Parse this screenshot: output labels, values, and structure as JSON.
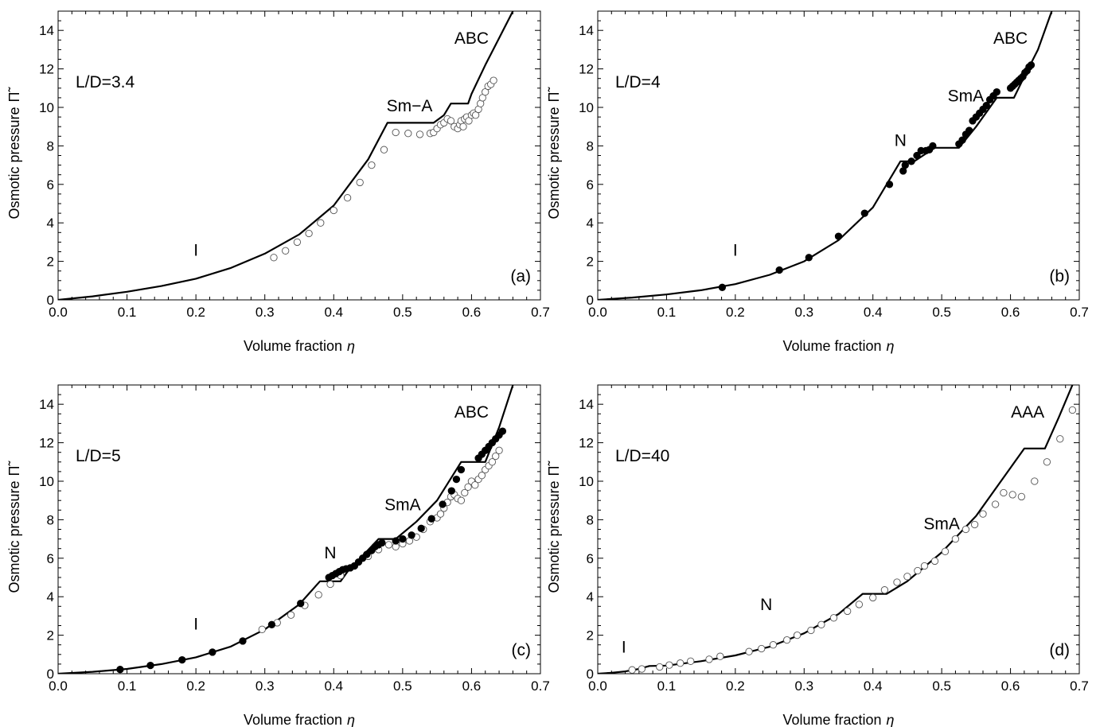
{
  "chart_data": [
    {
      "type": "scatter",
      "panel_label": "(a)",
      "annotation": "L/D=3.4",
      "xlabel": "Volume fraction",
      "xlabel_symbol": "η",
      "ylabel": "Osmotic pressure",
      "ylabel_symbol": "Π̃",
      "xlim": [
        0,
        0.7
      ],
      "ylim": [
        0,
        15
      ],
      "xticks": [
        "0.0",
        "0.1",
        "0.2",
        "0.3",
        "0.4",
        "0.5",
        "0.6",
        "0.7"
      ],
      "yticks": [
        "0",
        "2",
        "4",
        "6",
        "8",
        "10",
        "12",
        "14"
      ],
      "phase_labels": [
        {
          "text": "I",
          "x": 0.2,
          "y": 2.3
        },
        {
          "text": "Sm−A",
          "x": 0.51,
          "y": 9.8
        },
        {
          "text": "ABC",
          "x": 0.6,
          "y": 13.3
        }
      ],
      "series": [
        {
          "style": "theory-line",
          "x": [
            0,
            0.05,
            0.1,
            0.15,
            0.2,
            0.25,
            0.3,
            0.35,
            0.4,
            0.45,
            0.478,
            0.545,
            0.56,
            0.57,
            0.595,
            0.6,
            0.62,
            0.64,
            0.66
          ],
          "y": [
            0,
            0.18,
            0.42,
            0.72,
            1.1,
            1.65,
            2.4,
            3.4,
            4.9,
            7.3,
            9.2,
            9.2,
            9.6,
            10.2,
            10.2,
            10.7,
            12.2,
            13.6,
            15.0
          ]
        },
        {
          "style": "open-circle",
          "x": [
            0.313,
            0.33,
            0.347,
            0.364,
            0.381,
            0.4,
            0.42,
            0.438,
            0.455,
            0.473,
            0.49,
            0.508,
            0.525,
            0.54,
            0.545,
            0.55,
            0.555,
            0.56,
            0.565,
            0.57,
            0.575,
            0.58,
            0.583,
            0.585,
            0.588,
            0.59,
            0.593,
            0.596,
            0.6,
            0.603,
            0.606,
            0.61,
            0.613,
            0.616,
            0.62,
            0.624,
            0.628,
            0.632
          ],
          "y": [
            2.2,
            2.55,
            3.0,
            3.45,
            4.0,
            4.65,
            5.3,
            6.1,
            7.0,
            7.8,
            8.7,
            8.65,
            8.6,
            8.65,
            8.7,
            8.9,
            9.1,
            9.2,
            9.4,
            9.3,
            9.0,
            8.9,
            9.1,
            9.3,
            9.0,
            9.4,
            9.5,
            9.3,
            9.6,
            9.7,
            9.6,
            9.9,
            10.2,
            10.5,
            10.8,
            11.1,
            11.2,
            11.4
          ]
        }
      ]
    },
    {
      "type": "scatter",
      "panel_label": "(b)",
      "annotation": "L/D=4",
      "xlabel": "Volume fraction",
      "xlabel_symbol": "η",
      "ylabel": "Osmotic pressure",
      "ylabel_symbol": "Π̃",
      "xlim": [
        0,
        0.7
      ],
      "ylim": [
        0,
        15
      ],
      "xticks": [
        "0.0",
        "0.1",
        "0.2",
        "0.3",
        "0.4",
        "0.5",
        "0.6",
        "0.7"
      ],
      "yticks": [
        "0",
        "2",
        "4",
        "6",
        "8",
        "10",
        "12",
        "14"
      ],
      "phase_labels": [
        {
          "text": "I",
          "x": 0.2,
          "y": 2.3
        },
        {
          "text": "N",
          "x": 0.44,
          "y": 8.0
        },
        {
          "text": "SmA",
          "x": 0.535,
          "y": 10.3
        },
        {
          "text": "ABC",
          "x": 0.6,
          "y": 13.3
        }
      ],
      "series": [
        {
          "style": "theory-line",
          "x": [
            0,
            0.05,
            0.1,
            0.15,
            0.2,
            0.25,
            0.3,
            0.35,
            0.4,
            0.44,
            0.46,
            0.475,
            0.49,
            0.525,
            0.55,
            0.58,
            0.605,
            0.62,
            0.64,
            0.66
          ],
          "y": [
            0,
            0.12,
            0.28,
            0.5,
            0.82,
            1.3,
            2.0,
            3.1,
            4.8,
            7.2,
            7.2,
            7.55,
            7.9,
            7.9,
            9.0,
            10.5,
            10.5,
            11.6,
            13.0,
            15.0
          ]
        },
        {
          "style": "filled-circle",
          "x": [
            0.181,
            0.264,
            0.307,
            0.35,
            0.388,
            0.424,
            0.444,
            0.447,
            0.456,
            0.464,
            0.47,
            0.477,
            0.482,
            0.487,
            0.525,
            0.53,
            0.535,
            0.54,
            0.545,
            0.55,
            0.555,
            0.56,
            0.565,
            0.57,
            0.575,
            0.58,
            0.6,
            0.603,
            0.606,
            0.609,
            0.612,
            0.615,
            0.618,
            0.621,
            0.624,
            0.627,
            0.63
          ],
          "y": [
            0.65,
            1.55,
            2.2,
            3.3,
            4.5,
            6.0,
            6.7,
            7.0,
            7.2,
            7.5,
            7.75,
            7.75,
            7.8,
            8.0,
            8.1,
            8.3,
            8.6,
            8.8,
            9.3,
            9.5,
            9.7,
            9.9,
            10.1,
            10.4,
            10.6,
            10.8,
            11.0,
            11.1,
            11.2,
            11.3,
            11.4,
            11.5,
            11.6,
            11.8,
            11.9,
            12.1,
            12.2
          ]
        }
      ]
    },
    {
      "type": "scatter",
      "panel_label": "(c)",
      "annotation": "L/D=5",
      "xlabel": "Volume fraction",
      "xlabel_symbol": "η",
      "ylabel": "Osmotic pressure",
      "ylabel_symbol": "Π̃",
      "xlim": [
        0,
        0.7
      ],
      "ylim": [
        0,
        15
      ],
      "xticks": [
        "0.0",
        "0.1",
        "0.2",
        "0.3",
        "0.4",
        "0.5",
        "0.6",
        "0.7"
      ],
      "yticks": [
        "0",
        "2",
        "4",
        "6",
        "8",
        "10",
        "12",
        "14"
      ],
      "phase_labels": [
        {
          "text": "I",
          "x": 0.2,
          "y": 2.3
        },
        {
          "text": "N",
          "x": 0.395,
          "y": 6.0
        },
        {
          "text": "SmA",
          "x": 0.5,
          "y": 8.5
        },
        {
          "text": "ABC",
          "x": 0.6,
          "y": 13.3
        }
      ],
      "series": [
        {
          "style": "theory-line",
          "x": [
            0,
            0.05,
            0.1,
            0.15,
            0.2,
            0.25,
            0.3,
            0.35,
            0.38,
            0.41,
            0.42,
            0.465,
            0.49,
            0.52,
            0.55,
            0.585,
            0.62,
            0.64,
            0.66
          ],
          "y": [
            0,
            0.1,
            0.25,
            0.5,
            0.85,
            1.4,
            2.3,
            3.6,
            4.8,
            4.8,
            5.3,
            7.0,
            7.0,
            7.9,
            9.0,
            11.0,
            11.0,
            12.8,
            15.0
          ]
        },
        {
          "style": "open-circle",
          "x": [
            0.296,
            0.318,
            0.338,
            0.358,
            0.378,
            0.395,
            0.41,
            0.43,
            0.45,
            0.465,
            0.48,
            0.49,
            0.5,
            0.51,
            0.52,
            0.53,
            0.54,
            0.55,
            0.555,
            0.56,
            0.565,
            0.57,
            0.575,
            0.58,
            0.585,
            0.59,
            0.595,
            0.6,
            0.605,
            0.61,
            0.615,
            0.62,
            0.625,
            0.63,
            0.635,
            0.64
          ],
          "y": [
            2.3,
            2.65,
            3.05,
            3.55,
            4.1,
            4.65,
            5.1,
            5.6,
            6.1,
            6.45,
            6.7,
            6.6,
            6.75,
            6.9,
            7.1,
            7.5,
            7.9,
            8.1,
            8.3,
            8.6,
            8.9,
            9.2,
            9.3,
            9.1,
            9.0,
            9.4,
            9.7,
            10.0,
            9.8,
            10.1,
            10.3,
            10.6,
            10.8,
            11.0,
            11.3,
            11.6
          ]
        },
        {
          "style": "filled-circle",
          "x": [
            0.09,
            0.134,
            0.18,
            0.224,
            0.268,
            0.31,
            0.352,
            0.393,
            0.398,
            0.403,
            0.408,
            0.413,
            0.418,
            0.424,
            0.43,
            0.436,
            0.442,
            0.448,
            0.455,
            0.46,
            0.465,
            0.47,
            0.49,
            0.5,
            0.513,
            0.527,
            0.542,
            0.558,
            0.571,
            0.578,
            0.585,
            0.61,
            0.615,
            0.62,
            0.625,
            0.63,
            0.635,
            0.64,
            0.645
          ],
          "y": [
            0.22,
            0.43,
            0.72,
            1.12,
            1.7,
            2.55,
            3.65,
            5.0,
            5.1,
            5.2,
            5.3,
            5.4,
            5.45,
            5.5,
            5.6,
            5.8,
            6.0,
            6.2,
            6.4,
            6.6,
            6.7,
            6.8,
            6.9,
            7.0,
            7.2,
            7.55,
            8.05,
            8.8,
            9.5,
            10.1,
            10.6,
            11.2,
            11.4,
            11.6,
            11.8,
            12.0,
            12.2,
            12.4,
            12.6
          ]
        }
      ]
    },
    {
      "type": "scatter",
      "panel_label": "(d)",
      "annotation": "L/D=40",
      "xlabel": "Volume fraction",
      "xlabel_symbol": "η",
      "ylabel": "Osmotic pressure",
      "ylabel_symbol": "Π̃",
      "xlim": [
        0,
        0.7
      ],
      "ylim": [
        0,
        15
      ],
      "xticks": [
        "0.0",
        "0.1",
        "0.2",
        "0.3",
        "0.4",
        "0.5",
        "0.6",
        "0.7"
      ],
      "yticks": [
        "0",
        "2",
        "4",
        "6",
        "8",
        "10",
        "12",
        "14"
      ],
      "phase_labels": [
        {
          "text": "I",
          "x": 0.038,
          "y": 1.1
        },
        {
          "text": "N",
          "x": 0.245,
          "y": 3.3
        },
        {
          "text": "SmA",
          "x": 0.5,
          "y": 7.5
        },
        {
          "text": "AAA",
          "x": 0.625,
          "y": 13.3
        }
      ],
      "series": [
        {
          "style": "theory-line",
          "x": [
            0,
            0.02,
            0.04,
            0.06,
            0.075,
            0.1,
            0.15,
            0.2,
            0.25,
            0.3,
            0.35,
            0.385,
            0.42,
            0.45,
            0.5,
            0.55,
            0.6,
            0.62,
            0.65,
            0.67,
            0.69
          ],
          "y": [
            0,
            0.05,
            0.12,
            0.25,
            0.4,
            0.42,
            0.65,
            0.95,
            1.4,
            2.1,
            3.1,
            4.15,
            4.15,
            4.8,
            6.3,
            8.2,
            10.7,
            11.7,
            11.7,
            13.3,
            15.0
          ]
        },
        {
          "style": "open-circle",
          "x": [
            0.05,
            0.064,
            0.09,
            0.104,
            0.12,
            0.135,
            0.162,
            0.178,
            0.22,
            0.238,
            0.255,
            0.275,
            0.29,
            0.31,
            0.325,
            0.343,
            0.363,
            0.38,
            0.4,
            0.417,
            0.435,
            0.45,
            0.465,
            0.475,
            0.49,
            0.505,
            0.52,
            0.535,
            0.548,
            0.56,
            0.578,
            0.59,
            0.603,
            0.616,
            0.635,
            0.653,
            0.672,
            0.69
          ],
          "y": [
            0.2,
            0.25,
            0.35,
            0.45,
            0.55,
            0.65,
            0.75,
            0.9,
            1.15,
            1.3,
            1.5,
            1.75,
            2.0,
            2.25,
            2.55,
            2.9,
            3.25,
            3.6,
            3.95,
            4.35,
            4.75,
            5.05,
            5.35,
            5.6,
            5.85,
            6.35,
            7.0,
            7.5,
            7.75,
            8.3,
            8.8,
            9.4,
            9.3,
            9.2,
            10.0,
            11.0,
            12.2,
            13.7
          ]
        }
      ]
    }
  ]
}
